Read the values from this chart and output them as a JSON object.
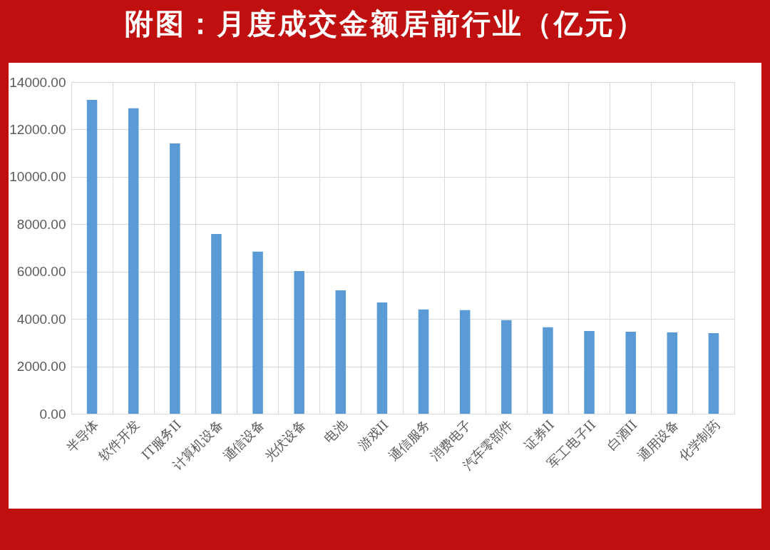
{
  "chart_data": {
    "type": "bar",
    "title": "附图：月度成交金额居前行业（亿元）",
    "categories": [
      "半导体",
      "软件开发",
      "IT服务II",
      "计算机设备",
      "通信设备",
      "光伏设备",
      "电池",
      "游戏II",
      "通信服务",
      "消费电子",
      "汽车零部件",
      "证券II",
      "军工电子II",
      "白酒II",
      "通用设备",
      "化学制药"
    ],
    "values": [
      13250,
      12890,
      11410,
      7590,
      6840,
      6020,
      5210,
      4700,
      4400,
      4370,
      3950,
      3650,
      3490,
      3460,
      3430,
      3400
    ],
    "color": "#5b9bd5",
    "ylim": [
      0,
      14000
    ],
    "yticks": [
      {
        "value": 0,
        "label": "0.00"
      },
      {
        "value": 2000,
        "label": "2000.00"
      },
      {
        "value": 4000,
        "label": "4000.00"
      },
      {
        "value": 6000,
        "label": "6000.00"
      },
      {
        "value": 8000,
        "label": "8000.00"
      },
      {
        "value": 10000,
        "label": "10000.00"
      },
      {
        "value": 12000,
        "label": "12000.00"
      },
      {
        "value": 14000,
        "label": "14000.00"
      }
    ],
    "grid": true
  }
}
